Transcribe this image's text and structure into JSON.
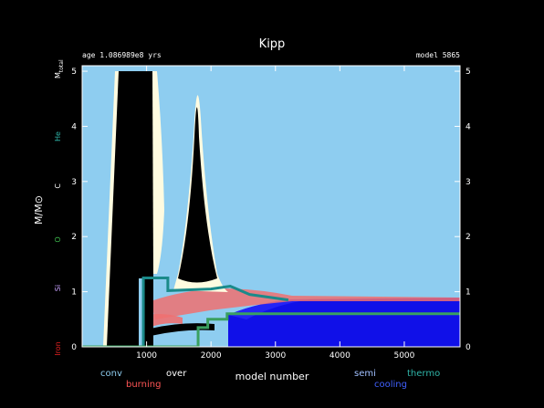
{
  "chart_data": {
    "type": "area",
    "title": "Kipp",
    "subtitle_left": "age 1.086989e8 yrs",
    "subtitle_right": "model 5865",
    "xlabel": "model number",
    "ylabel": "M/M⊙",
    "xlim": [
      0,
      5865
    ],
    "ylim": [
      0,
      5.1
    ],
    "x_ticks": [
      "1000",
      "2000",
      "3000",
      "4000",
      "5000"
    ],
    "x_tick_values": [
      1000,
      2000,
      3000,
      4000,
      5000
    ],
    "y_ticks_left": [
      "0",
      "1",
      "2",
      "3",
      "4",
      "5"
    ],
    "y_ticks_right": [
      "0",
      "1",
      "2",
      "3",
      "4",
      "5"
    ],
    "y_tick_values": [
      0,
      1,
      2,
      3,
      4,
      5
    ],
    "right_axis_top_label": "M",
    "right_axis_top_sub": "total",
    "abundance_labels": [
      {
        "text": "He",
        "y": 3.85,
        "color": "#2fb5a8"
      },
      {
        "text": "C",
        "y": 2.95,
        "color": "#ffffff"
      },
      {
        "text": "O",
        "y": 1.98,
        "color": "#3cb44b"
      },
      {
        "text": "Si",
        "y": 1.1,
        "color": "#c8a2ff"
      },
      {
        "text": "Iron",
        "y": 0.0,
        "color": "#e02020"
      }
    ],
    "legend": [
      {
        "text": "conv",
        "color": "#8ecdf0"
      },
      {
        "text": "burning",
        "color": "#ff5555"
      },
      {
        "text": "over",
        "color": "#ffffff"
      },
      {
        "text": "semi",
        "color": "#a0c0ff"
      },
      {
        "text": "cooling",
        "color": "#4060ff"
      },
      {
        "text": "thermo",
        "color": "#2fb5a8"
      }
    ],
    "colors": {
      "background": "#8ecdf0",
      "conv_region": "#000000",
      "burning": "#f07070",
      "overshoot": "#fffbe0",
      "cooling": "#1010e8",
      "he_core_line": "#1a8a8a",
      "co_core_line": "#3aa060"
    },
    "series": [
      {
        "kind": "he_core",
        "x": [
          0,
          950,
          950,
          1330,
          1330,
          2000,
          2300,
          2600,
          3200
        ],
        "y": [
          0.0,
          0.0,
          1.25,
          1.25,
          1.02,
          1.05,
          1.1,
          0.95,
          0.85
        ]
      },
      {
        "kind": "co_core",
        "x": [
          0,
          1800,
          1800,
          1950,
          1950,
          2250,
          2250,
          5865
        ],
        "y": [
          0.0,
          0.0,
          0.35,
          0.35,
          0.5,
          0.5,
          0.6,
          0.6
        ]
      }
    ]
  }
}
